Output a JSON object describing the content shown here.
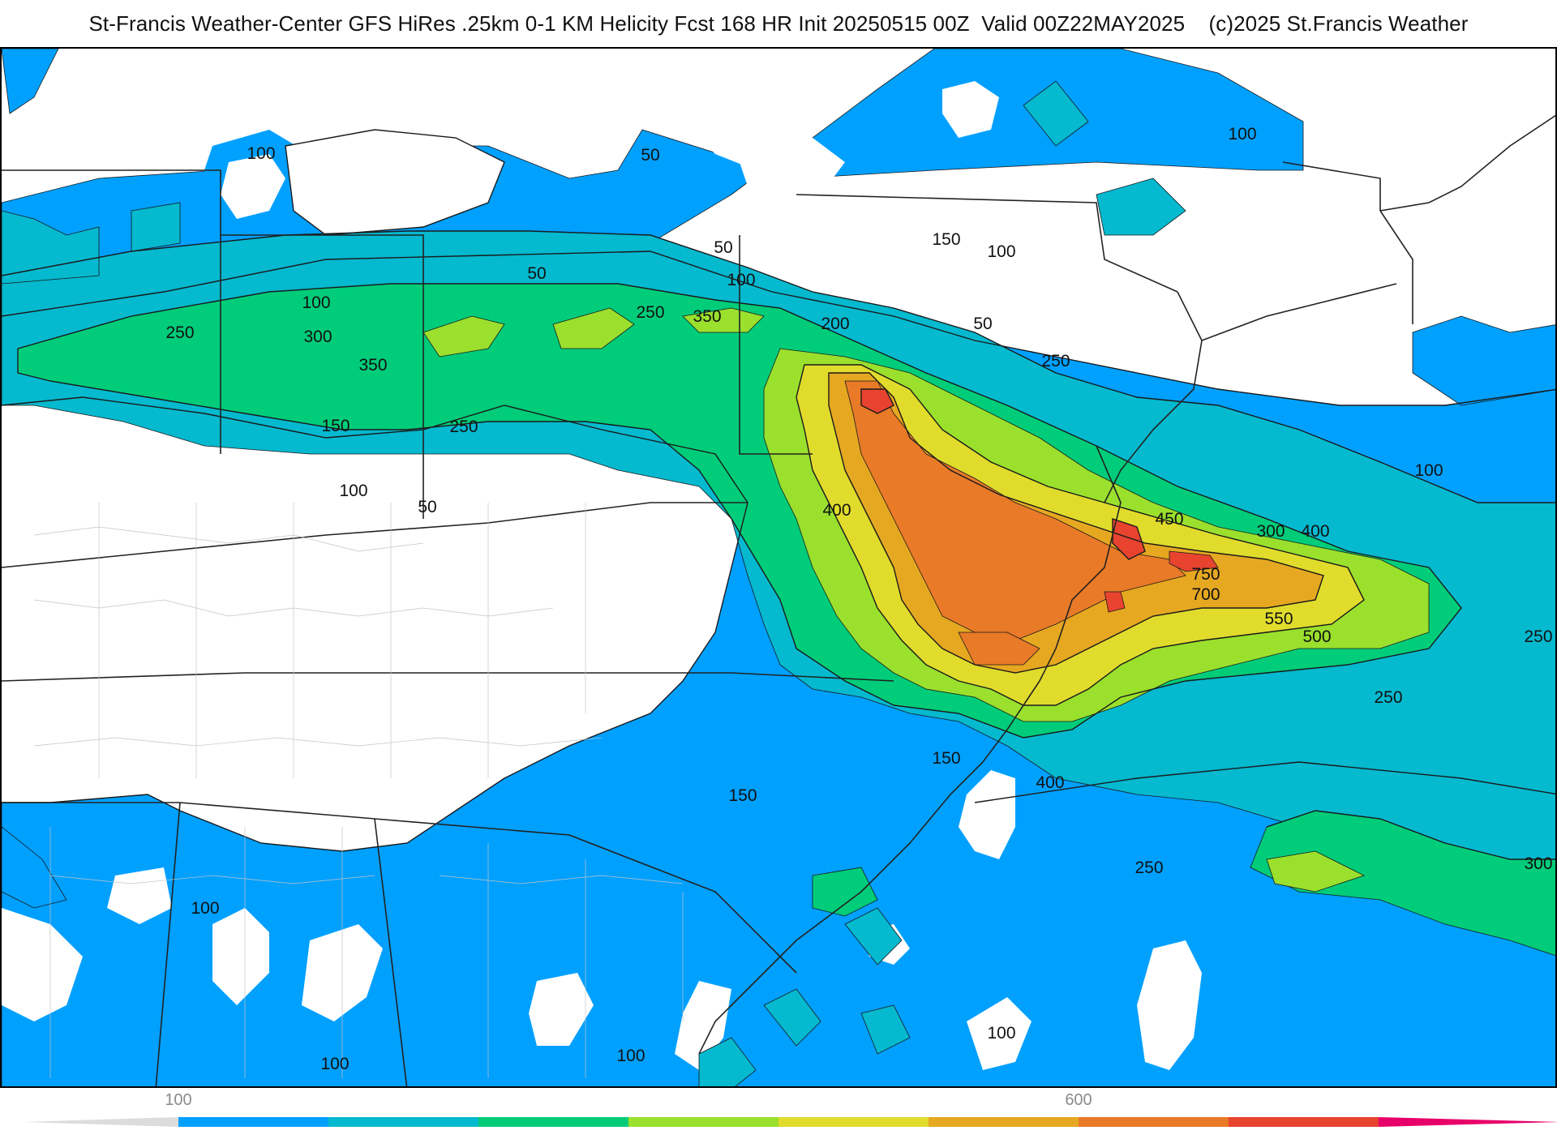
{
  "title": "St-Francis Weather-Center GFS HiRes .25km 0-1 KM Helicity Fcst 168 HR Init 20250515 00Z  Valid 00Z22MAY2025    (c)2025 St.Francis Weather",
  "map": {
    "field": "0-1 KM Helicity",
    "colors": {
      "h100": "#00a0ff",
      "h150": "#05b9cf",
      "h200": "#00c8a8",
      "h250": "#00cc7a",
      "h300": "#9ae02d",
      "h400": "#e1dc2c",
      "h500": "#e6a821",
      "h600": "#e87a28",
      "h700": "#e8432f",
      "h800": "#e8006a",
      "border": "#222222",
      "county": "#bdbdbd"
    },
    "contour_labels": [
      {
        "text": "100"
      },
      {
        "text": "50"
      },
      {
        "text": "100"
      },
      {
        "text": "150"
      },
      {
        "text": "100"
      },
      {
        "text": "50"
      },
      {
        "text": "50"
      },
      {
        "text": "100"
      },
      {
        "text": "100"
      },
      {
        "text": "250"
      },
      {
        "text": "350"
      },
      {
        "text": "250"
      },
      {
        "text": "300"
      },
      {
        "text": "350"
      },
      {
        "text": "200"
      },
      {
        "text": "50"
      },
      {
        "text": "250"
      },
      {
        "text": "150"
      },
      {
        "text": "250"
      },
      {
        "text": "100"
      },
      {
        "text": "50"
      },
      {
        "text": "100"
      },
      {
        "text": "400"
      },
      {
        "text": "450"
      },
      {
        "text": "300"
      },
      {
        "text": "400"
      },
      {
        "text": "750"
      },
      {
        "text": "700"
      },
      {
        "text": "550"
      },
      {
        "text": "500"
      },
      {
        "text": "250"
      },
      {
        "text": "250"
      },
      {
        "text": "150"
      },
      {
        "text": "150"
      },
      {
        "text": "400"
      },
      {
        "text": "250"
      },
      {
        "text": "300"
      },
      {
        "text": "100"
      },
      {
        "text": "100"
      },
      {
        "text": "100"
      },
      {
        "text": "100"
      }
    ]
  },
  "colorbar": {
    "ticks": [
      {
        "label": "100",
        "value": 100
      },
      {
        "label": "600",
        "value": 600
      }
    ],
    "segments": [
      {
        "color": "#00a0ff",
        "value": 100
      },
      {
        "color": "#05b9cf",
        "value": 150
      },
      {
        "color": "#00cc7a",
        "value": 250
      },
      {
        "color": "#9ae02d",
        "value": 300
      },
      {
        "color": "#e1dc2c",
        "value": 400
      },
      {
        "color": "#e6a821",
        "value": 500
      },
      {
        "color": "#e87a28",
        "value": 600
      },
      {
        "color": "#e8432f",
        "value": 700
      },
      {
        "color": "#e8006a",
        "value": 800
      }
    ]
  }
}
